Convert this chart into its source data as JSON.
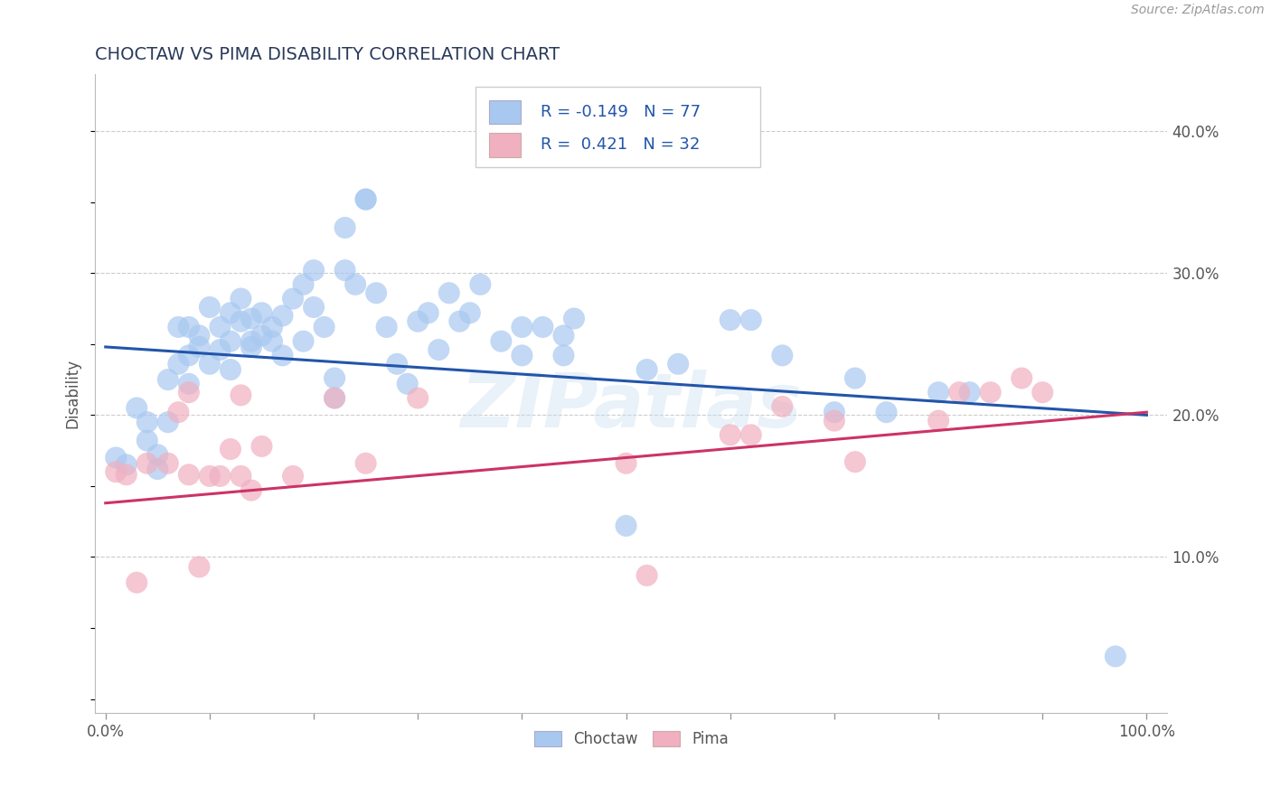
{
  "title": "CHOCTAW VS PIMA DISABILITY CORRELATION CHART",
  "ylabel": "Disability",
  "source": "Source: ZipAtlas.com",
  "xlim": [
    -0.01,
    1.02
  ],
  "ylim": [
    -0.01,
    0.44
  ],
  "yticks_right": [
    0.1,
    0.2,
    0.3,
    0.4
  ],
  "ytick_labels_right": [
    "10.0%",
    "20.0%",
    "30.0%",
    "40.0%"
  ],
  "grid_color": "#cccccc",
  "bg_color": "#ffffff",
  "choctaw_color": "#a8c8f0",
  "pima_color": "#f0b0c0",
  "choctaw_line_color": "#2255aa",
  "pima_line_color": "#cc3366",
  "title_color": "#2a3a5a",
  "watermark": "ZIPatlas",
  "choctaw_line_x0": 0.0,
  "choctaw_line_y0": 0.248,
  "choctaw_line_x1": 1.0,
  "choctaw_line_y1": 0.2,
  "pima_line_x0": 0.0,
  "pima_line_y0": 0.138,
  "pima_line_x1": 1.0,
  "pima_line_y1": 0.202,
  "choctaw_x": [
    0.01,
    0.02,
    0.03,
    0.04,
    0.04,
    0.05,
    0.05,
    0.06,
    0.06,
    0.07,
    0.07,
    0.08,
    0.08,
    0.08,
    0.09,
    0.09,
    0.1,
    0.1,
    0.11,
    0.11,
    0.12,
    0.12,
    0.12,
    0.13,
    0.13,
    0.14,
    0.14,
    0.14,
    0.15,
    0.15,
    0.16,
    0.16,
    0.17,
    0.17,
    0.18,
    0.19,
    0.19,
    0.2,
    0.2,
    0.21,
    0.22,
    0.22,
    0.23,
    0.23,
    0.24,
    0.25,
    0.25,
    0.26,
    0.27,
    0.28,
    0.29,
    0.3,
    0.31,
    0.32,
    0.33,
    0.34,
    0.35,
    0.36,
    0.38,
    0.4,
    0.4,
    0.42,
    0.44,
    0.44,
    0.45,
    0.5,
    0.52,
    0.55,
    0.6,
    0.62,
    0.65,
    0.7,
    0.72,
    0.75,
    0.8,
    0.83,
    0.97
  ],
  "choctaw_y": [
    0.17,
    0.165,
    0.205,
    0.195,
    0.182,
    0.162,
    0.172,
    0.195,
    0.225,
    0.236,
    0.262,
    0.222,
    0.242,
    0.262,
    0.256,
    0.248,
    0.236,
    0.276,
    0.246,
    0.262,
    0.232,
    0.252,
    0.272,
    0.266,
    0.282,
    0.252,
    0.248,
    0.268,
    0.272,
    0.256,
    0.252,
    0.262,
    0.242,
    0.27,
    0.282,
    0.252,
    0.292,
    0.276,
    0.302,
    0.262,
    0.226,
    0.212,
    0.302,
    0.332,
    0.292,
    0.352,
    0.352,
    0.286,
    0.262,
    0.236,
    0.222,
    0.266,
    0.272,
    0.246,
    0.286,
    0.266,
    0.272,
    0.292,
    0.252,
    0.242,
    0.262,
    0.262,
    0.242,
    0.256,
    0.268,
    0.122,
    0.232,
    0.236,
    0.267,
    0.267,
    0.242,
    0.202,
    0.226,
    0.202,
    0.216,
    0.216,
    0.03
  ],
  "pima_x": [
    0.01,
    0.02,
    0.03,
    0.04,
    0.06,
    0.07,
    0.08,
    0.08,
    0.09,
    0.1,
    0.11,
    0.12,
    0.13,
    0.13,
    0.14,
    0.15,
    0.18,
    0.22,
    0.25,
    0.3,
    0.5,
    0.52,
    0.6,
    0.62,
    0.65,
    0.7,
    0.72,
    0.8,
    0.82,
    0.85,
    0.88,
    0.9
  ],
  "pima_y": [
    0.16,
    0.158,
    0.082,
    0.166,
    0.166,
    0.202,
    0.216,
    0.158,
    0.093,
    0.157,
    0.157,
    0.176,
    0.157,
    0.214,
    0.147,
    0.178,
    0.157,
    0.212,
    0.166,
    0.212,
    0.166,
    0.087,
    0.186,
    0.186,
    0.206,
    0.196,
    0.167,
    0.196,
    0.216,
    0.216,
    0.226,
    0.216
  ]
}
